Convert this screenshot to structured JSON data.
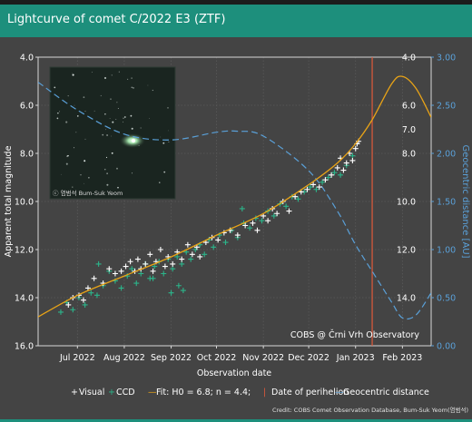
{
  "page": {
    "title": "Lightcurve of comet C/2022 E3 (ZTF)"
  },
  "colors": {
    "background": "#444444",
    "header": "#1d8f7c",
    "visual": "#ffffff",
    "ccd": "#2bb58a",
    "fit": "#e8a317",
    "perihelion": "#e05a3a",
    "distance": "#5aa0d8",
    "text": "#ffffff"
  },
  "photo": {
    "caption": "ⓒ 염범석 Bum-Suk Yeom"
  },
  "chart_data": {
    "type": "scatter",
    "xlabel": "Observation date",
    "ylabel": "Apparent total magnitude",
    "y2label": "Geocentric distance [AU]",
    "xlim": [
      "2022-06-05",
      "2023-02-20"
    ],
    "ylim": [
      16.0,
      4.0
    ],
    "y2lim": [
      0.0,
      3.0
    ],
    "grid": true,
    "x_ticks": [
      {
        "date": "2022-07-01",
        "label": "Jul 2022"
      },
      {
        "date": "2022-08-01",
        "label": "Aug 2022"
      },
      {
        "date": "2022-09-01",
        "label": "Sep 2022"
      },
      {
        "date": "2022-10-01",
        "label": "Oct 2022"
      },
      {
        "date": "2022-11-01",
        "label": "Nov 2022"
      },
      {
        "date": "2022-12-01",
        "label": "Dec 2022"
      },
      {
        "date": "2023-01-01",
        "label": "Jan 2023"
      },
      {
        "date": "2023-02-01",
        "label": "Feb 2023"
      }
    ],
    "y_ticks": [
      {
        "value": 4,
        "label": "4.0"
      },
      {
        "value": 6,
        "label": "6.0"
      },
      {
        "value": 8,
        "label": "8.0"
      },
      {
        "value": 10,
        "label": "10.0"
      },
      {
        "value": 12,
        "label": "12.0"
      },
      {
        "value": 14,
        "label": "14.0"
      },
      {
        "value": 16,
        "label": "16.0"
      }
    ],
    "y2_ticks": [
      {
        "value": 0.0,
        "label": "0.00"
      },
      {
        "value": 0.5,
        "label": "0.50"
      },
      {
        "value": 1.0,
        "label": "1.00"
      },
      {
        "value": 1.5,
        "label": "1.50"
      },
      {
        "value": 2.0,
        "label": "2.00"
      },
      {
        "value": 2.5,
        "label": "2.50"
      },
      {
        "value": 3.0,
        "label": "3.00"
      }
    ],
    "inner_mag_labels": [
      {
        "value": 4,
        "label": "4.0"
      },
      {
        "value": 6,
        "label": "6.0"
      },
      {
        "value": 7,
        "label": "7.0"
      },
      {
        "value": 8,
        "label": "8.0"
      },
      {
        "value": 10,
        "label": "10.0"
      },
      {
        "value": 12,
        "label": "12.0"
      },
      {
        "value": 14,
        "label": "14.0"
      }
    ],
    "annotation": "COBS @ Črni Vrh Observatory",
    "legend": {
      "placement": "bottom",
      "items": [
        "+ Visual",
        "+ CCD",
        "— Fit: H0 = 6.8; n = 4.4;",
        "| Date of perihelion",
        "— Geocentric distance"
      ]
    },
    "credit": "Credit: COBS Comet Observation Database, Bum-Suk Yeom(염범석)",
    "perihelion_date": "2023-01-12",
    "fit": {
      "name": "Fit: H0 = 6.8; n = 4.4;",
      "x": [
        "2022-06-05",
        "2022-07-01",
        "2022-08-01",
        "2022-09-01",
        "2022-10-01",
        "2022-11-01",
        "2022-12-01",
        "2022-12-20",
        "2023-01-01",
        "2023-01-12",
        "2023-01-25",
        "2023-02-01",
        "2023-02-10",
        "2023-02-20"
      ],
      "y": [
        14.8,
        13.9,
        13.1,
        12.3,
        11.4,
        10.5,
        9.3,
        8.4,
        7.6,
        6.6,
        5.1,
        4.8,
        5.3,
        6.5
      ]
    },
    "distance": {
      "name": "Geocentric distance",
      "x": [
        "2022-06-05",
        "2022-07-01",
        "2022-08-01",
        "2022-09-01",
        "2022-10-01",
        "2022-10-15",
        "2022-11-01",
        "2022-12-01",
        "2022-12-20",
        "2023-01-01",
        "2023-01-15",
        "2023-01-25",
        "2023-02-01",
        "2023-02-10",
        "2023-02-20"
      ],
      "y": [
        2.74,
        2.45,
        2.2,
        2.14,
        2.22,
        2.23,
        2.18,
        1.82,
        1.4,
        1.05,
        0.7,
        0.45,
        0.29,
        0.32,
        0.55
      ]
    },
    "series": [
      {
        "name": "Visual",
        "x": [
          "2022-06-25",
          "2022-06-28",
          "2022-07-02",
          "2022-07-05",
          "2022-07-08",
          "2022-07-12",
          "2022-07-18",
          "2022-07-22",
          "2022-07-26",
          "2022-07-30",
          "2022-08-02",
          "2022-08-05",
          "2022-08-08",
          "2022-08-10",
          "2022-08-12",
          "2022-08-15",
          "2022-08-18",
          "2022-08-20",
          "2022-08-22",
          "2022-08-25",
          "2022-08-28",
          "2022-08-30",
          "2022-09-02",
          "2022-09-05",
          "2022-09-08",
          "2022-09-12",
          "2022-09-15",
          "2022-09-18",
          "2022-09-20",
          "2022-09-24",
          "2022-09-28",
          "2022-10-02",
          "2022-10-06",
          "2022-10-10",
          "2022-10-15",
          "2022-10-20",
          "2022-10-25",
          "2022-10-28",
          "2022-11-01",
          "2022-11-04",
          "2022-11-07",
          "2022-11-10",
          "2022-11-14",
          "2022-11-18",
          "2022-11-22",
          "2022-11-26",
          "2022-11-30",
          "2022-12-04",
          "2022-12-08",
          "2022-12-12",
          "2022-12-16",
          "2022-12-20",
          "2022-12-22",
          "2022-12-24",
          "2022-12-26",
          "2022-12-28",
          "2022-12-30",
          "2023-01-01",
          "2023-01-02",
          "2023-01-03"
        ],
        "y": [
          14.3,
          14.0,
          13.9,
          14.1,
          13.6,
          13.2,
          13.4,
          12.8,
          13.0,
          12.9,
          12.7,
          12.5,
          12.9,
          12.4,
          12.8,
          12.6,
          12.2,
          12.9,
          12.5,
          12.0,
          12.7,
          12.3,
          12.6,
          12.1,
          12.4,
          11.8,
          12.2,
          11.9,
          12.3,
          11.7,
          11.5,
          11.6,
          11.3,
          11.2,
          11.4,
          11.0,
          10.9,
          11.2,
          10.6,
          10.8,
          10.3,
          10.5,
          10.0,
          10.4,
          9.8,
          9.6,
          9.5,
          9.3,
          9.4,
          9.1,
          8.9,
          8.6,
          8.2,
          8.7,
          8.4,
          8.0,
          8.3,
          7.8,
          7.6,
          7.5
        ]
      },
      {
        "name": "CCD",
        "x": [
          "2022-06-20",
          "2022-06-24",
          "2022-06-28",
          "2022-07-02",
          "2022-07-06",
          "2022-07-10",
          "2022-07-14",
          "2022-07-18",
          "2022-07-22",
          "2022-07-26",
          "2022-07-30",
          "2022-08-03",
          "2022-08-06",
          "2022-08-09",
          "2022-08-12",
          "2022-08-15",
          "2022-08-18",
          "2022-08-21",
          "2022-08-24",
          "2022-08-27",
          "2022-08-30",
          "2022-09-02",
          "2022-09-05",
          "2022-09-08",
          "2022-09-11",
          "2022-09-14",
          "2022-09-17",
          "2022-09-20",
          "2022-09-23",
          "2022-09-26",
          "2022-09-29",
          "2022-10-03",
          "2022-10-07",
          "2022-10-11",
          "2022-10-15",
          "2022-10-19",
          "2022-10-23",
          "2022-10-27",
          "2022-10-31",
          "2022-11-04",
          "2022-11-08",
          "2022-11-12",
          "2022-11-16",
          "2022-11-20",
          "2022-11-24",
          "2022-11-28",
          "2022-12-02",
          "2022-12-06",
          "2022-12-10",
          "2022-12-14",
          "2022-12-18",
          "2022-12-22",
          "2022-12-26",
          "2022-12-30",
          "2022-09-01",
          "2022-09-06",
          "2022-09-09",
          "2022-08-20",
          "2022-07-15",
          "2022-10-18"
        ],
        "y": [
          14.6,
          14.2,
          14.5,
          14.0,
          14.3,
          13.8,
          13.9,
          13.5,
          12.9,
          13.3,
          13.6,
          13.1,
          12.8,
          13.4,
          13.0,
          12.6,
          13.2,
          12.7,
          12.5,
          13.0,
          12.4,
          12.8,
          12.3,
          12.6,
          12.1,
          12.4,
          12.0,
          11.8,
          12.2,
          11.6,
          11.9,
          11.4,
          11.7,
          11.2,
          11.5,
          10.9,
          11.1,
          10.7,
          10.8,
          10.4,
          10.6,
          10.1,
          10.2,
          9.8,
          9.9,
          9.6,
          9.4,
          9.5,
          9.2,
          9.0,
          8.8,
          8.9,
          8.5,
          8.1,
          13.8,
          13.5,
          13.7,
          13.2,
          12.6,
          10.3
        ]
      }
    ]
  }
}
